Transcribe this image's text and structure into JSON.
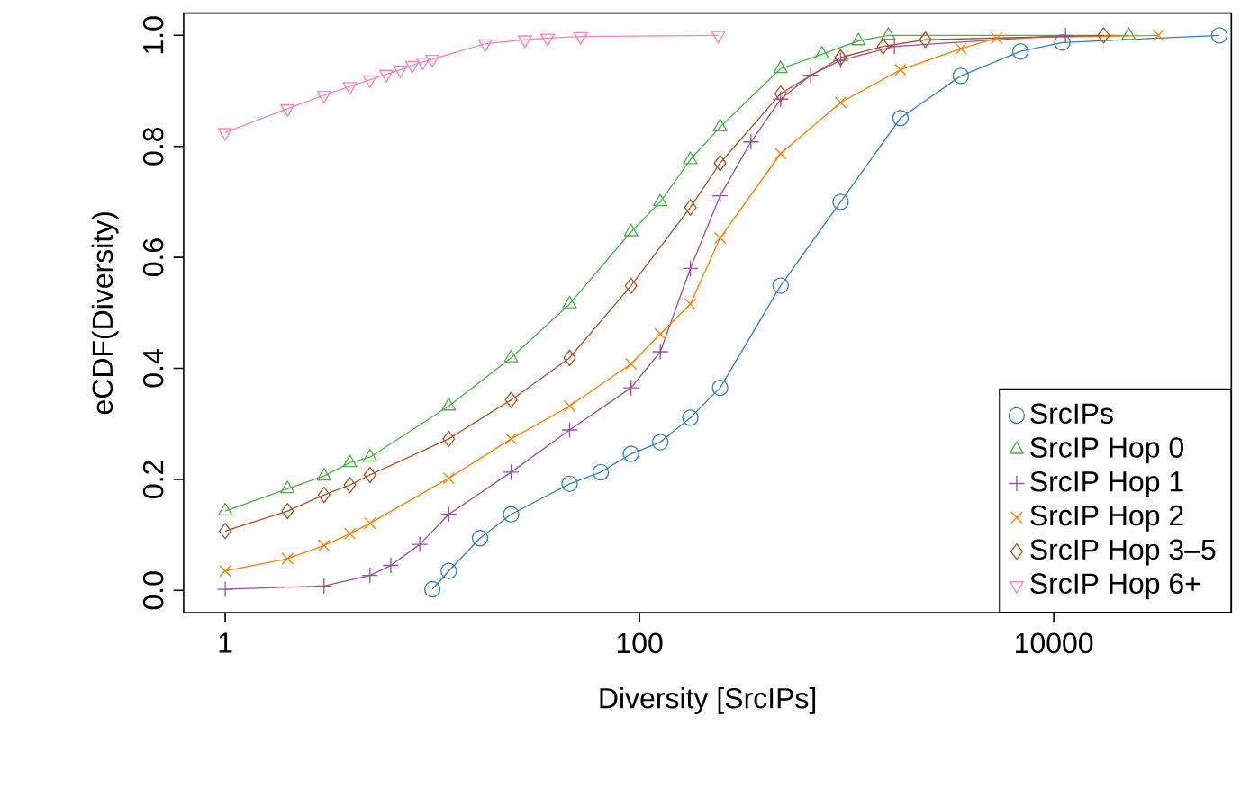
{
  "chart_data": {
    "type": "line",
    "xlabel": "Diversity [SrcIPs]",
    "ylabel": "eCDF(Diversity)",
    "log": "x",
    "grid": false,
    "legend": "bottom right",
    "line_style": "solid",
    "xlim": [
      0.63,
      72000
    ],
    "ylim": [
      -0.04,
      1.04
    ],
    "xticks": [
      1,
      100,
      10000
    ],
    "yticks": [
      {
        "value": 0,
        "label": "0.0"
      },
      {
        "value": 0.2,
        "label": "0.2"
      },
      {
        "value": 0.4,
        "label": "0.4"
      },
      {
        "value": 0.6,
        "label": "0.6"
      },
      {
        "value": 0.8,
        "label": "0.8"
      },
      {
        "value": 1,
        "label": "1.0"
      }
    ],
    "series": [
      {
        "name": "SrcIPs",
        "color": "#377eb8",
        "marker": "circle",
        "x": [
          10,
          12,
          17,
          24,
          46,
          65,
          91,
          126,
          176,
          245,
          480,
          935,
          1820,
          3560,
          6900,
          11000,
          63000
        ],
        "values": [
          0.002,
          0.035,
          0.094,
          0.137,
          0.192,
          0.213,
          0.246,
          0.267,
          0.311,
          0.365,
          0.549,
          0.7,
          0.851,
          0.927,
          0.971,
          0.987,
          1.0
        ]
      },
      {
        "name": "SrcIP Hop 0",
        "color": "#4daf4a",
        "marker": "triangle",
        "x": [
          1,
          2,
          3,
          4,
          5,
          12,
          24,
          46,
          91,
          126,
          176,
          245,
          480,
          760,
          1140,
          1590,
          23000
        ],
        "values": [
          0.143,
          0.183,
          0.206,
          0.23,
          0.24,
          0.332,
          0.419,
          0.516,
          0.646,
          0.7,
          0.776,
          0.835,
          0.94,
          0.966,
          0.99,
          1.0,
          1.0
        ]
      },
      {
        "name": "SrcIP Hop 1",
        "color": "#984ea3",
        "marker": "plus",
        "x": [
          1,
          3,
          5,
          6.3,
          8.7,
          12,
          24,
          46,
          91,
          126,
          176,
          245,
          345,
          480,
          670,
          935,
          1700,
          11400
        ],
        "values": [
          0.002,
          0.008,
          0.027,
          0.045,
          0.083,
          0.137,
          0.213,
          0.289,
          0.365,
          0.43,
          0.58,
          0.711,
          0.808,
          0.885,
          0.928,
          0.955,
          0.98,
          1.0
        ]
      },
      {
        "name": "SrcIP Hop 2",
        "color": "#ff7f00",
        "marker": "cross",
        "x": [
          1,
          2,
          3,
          4,
          5,
          12,
          24,
          46,
          91,
          126,
          176,
          245,
          480,
          935,
          1820,
          3560,
          5300,
          32000
        ],
        "values": [
          0.035,
          0.057,
          0.081,
          0.102,
          0.121,
          0.202,
          0.273,
          0.332,
          0.408,
          0.462,
          0.516,
          0.635,
          0.787,
          0.879,
          0.938,
          0.976,
          0.995,
          1.0
        ]
      },
      {
        "name": "SrcIP Hop 3–5",
        "color": "#a65628",
        "marker": "diamond",
        "x": [
          1,
          2,
          3,
          4,
          5,
          12,
          24,
          46,
          91,
          176,
          245,
          480,
          935,
          1500,
          2400,
          17400
        ],
        "values": [
          0.107,
          0.143,
          0.172,
          0.19,
          0.208,
          0.273,
          0.343,
          0.419,
          0.549,
          0.69,
          0.77,
          0.895,
          0.96,
          0.98,
          0.992,
          1.0
        ]
      },
      {
        "name": "SrcIP Hop 6+",
        "color": "#f781bf",
        "marker": "triangle-down",
        "x": [
          1,
          2,
          3,
          4,
          5,
          6,
          7,
          8,
          9,
          10,
          18,
          28,
          36,
          52,
          240
        ],
        "values": [
          0.825,
          0.868,
          0.892,
          0.908,
          0.92,
          0.93,
          0.938,
          0.946,
          0.952,
          0.957,
          0.985,
          0.992,
          0.995,
          0.998,
          1.0
        ]
      }
    ]
  }
}
